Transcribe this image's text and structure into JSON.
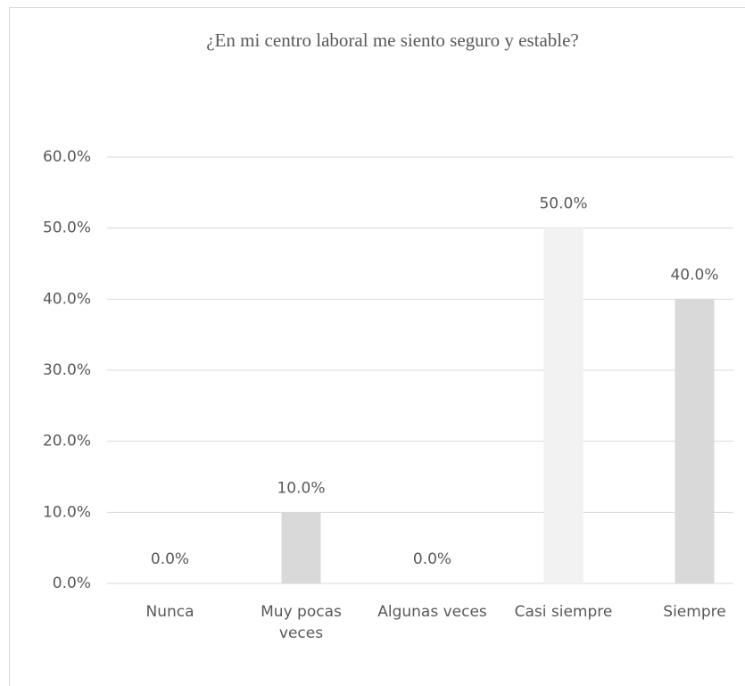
{
  "chart_data": {
    "type": "bar",
    "title": "¿En mi centro laboral me siento seguro y estable?",
    "categories": [
      "Nunca",
      "Muy pocas veces",
      "Algunas veces",
      "Casi siempre",
      "Siempre"
    ],
    "values": [
      0,
      10,
      0,
      50,
      40
    ],
    "value_labels": [
      "0.0%",
      "10.0%",
      "0.0%",
      "50.0%",
      "40.0%"
    ],
    "colors": [
      "#d9d9d9",
      "#d9d9d9",
      "#d9d9d9",
      "#f2f2f2",
      "#d9d9d9"
    ],
    "ylim": [
      0,
      60
    ],
    "yticks": [
      {
        "value": 0,
        "label": "0.0%"
      },
      {
        "value": 10,
        "label": "10.0%"
      },
      {
        "value": 20,
        "label": "20.0%"
      },
      {
        "value": 30,
        "label": "30.0%"
      },
      {
        "value": 40,
        "label": "40.0%"
      },
      {
        "value": 50,
        "label": "50.0%"
      },
      {
        "value": 60,
        "label": "60.0%"
      }
    ],
    "grid": true
  }
}
